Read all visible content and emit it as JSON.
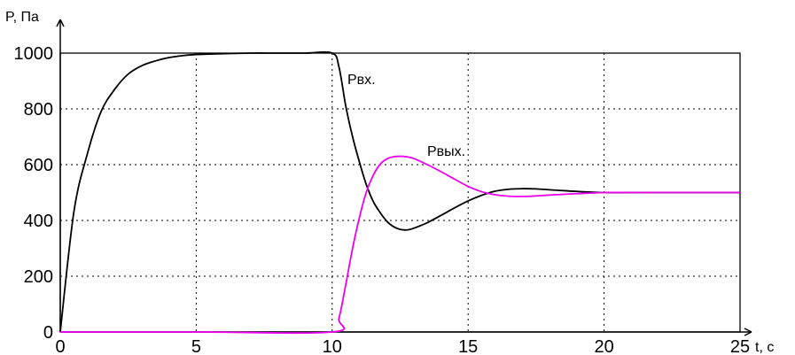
{
  "chart_data": {
    "type": "line",
    "xlabel": "t, c",
    "ylabel": "P, Па",
    "xlim": [
      0,
      25
    ],
    "ylim": [
      0,
      1000
    ],
    "xticks": [
      "0",
      "5",
      "10",
      "15",
      "20",
      "25"
    ],
    "yticks": [
      "0",
      "200",
      "400",
      "600",
      "800",
      "1000"
    ],
    "grid": true,
    "annotations": [
      "Рвх.",
      "Рвых."
    ],
    "series": [
      {
        "name": "Рвх.",
        "color": "#000000",
        "x": [
          0,
          0.5,
          1,
          1.5,
          2,
          2.5,
          3,
          3.5,
          4,
          4.5,
          5,
          6,
          7,
          8,
          9,
          10,
          10.25,
          10.5,
          10.75,
          11,
          11.25,
          11.5,
          11.75,
          12,
          12.25,
          12.5,
          12.75,
          13,
          13.5,
          14,
          14.5,
          15,
          15.5,
          16,
          16.5,
          17,
          17.5,
          18,
          19,
          20,
          21,
          22,
          23,
          24,
          25
        ],
        "values": [
          0,
          430,
          640,
          790,
          870,
          925,
          955,
          972,
          984,
          991,
          995,
          998,
          1000,
          1000,
          1000,
          1000,
          950,
          810,
          700,
          610,
          530,
          470,
          430,
          398,
          378,
          368,
          366,
          372,
          392,
          418,
          445,
          470,
          490,
          505,
          512,
          514,
          513,
          510,
          504,
          500,
          500,
          500,
          500,
          500,
          500
        ]
      },
      {
        "name": "Рвых.",
        "color": "#ee00ee",
        "x": [
          0,
          5,
          10,
          10.25,
          10.5,
          10.75,
          11,
          11.25,
          11.5,
          11.75,
          12,
          12.25,
          12.5,
          12.75,
          13,
          13.5,
          14,
          14.5,
          15,
          15.5,
          16,
          16.5,
          17,
          17.5,
          18,
          19,
          20,
          21,
          22,
          23,
          24,
          25
        ],
        "values": [
          0,
          0,
          0,
          50,
          170,
          300,
          410,
          500,
          560,
          600,
          620,
          628,
          630,
          628,
          622,
          600,
          575,
          548,
          522,
          503,
          492,
          487,
          486,
          488,
          491,
          496,
          500,
          500,
          500,
          500,
          500,
          500
        ]
      }
    ]
  }
}
